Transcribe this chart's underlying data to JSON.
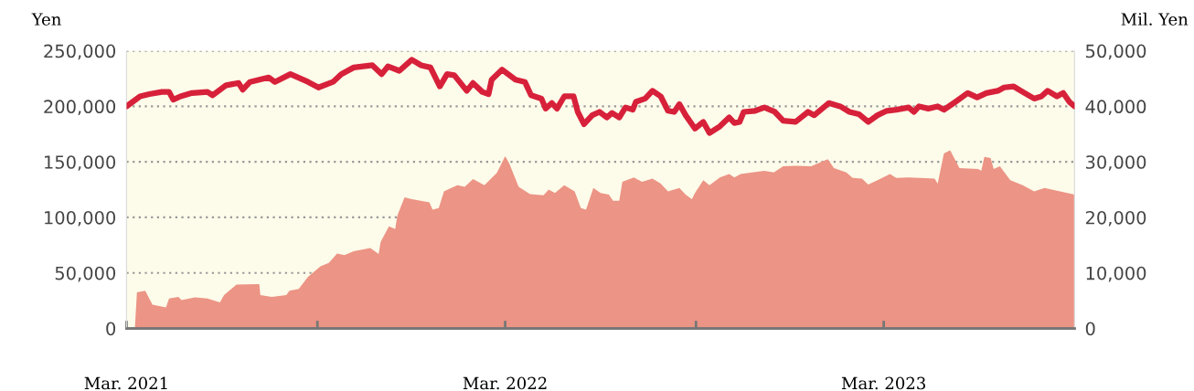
{
  "chart_data": {
    "type": "line",
    "ylabel": "Yen",
    "y2label": "Mil. Yen",
    "xlim": [
      "2021-03-01",
      "2023-09-01"
    ],
    "xticks": [
      {
        "value": "2021-03-01",
        "label": "Mar. 2021"
      },
      {
        "value": "2021-09-01",
        "label": null
      },
      {
        "value": "2022-03-01",
        "label": "Mar. 2022"
      },
      {
        "value": "2022-09-01",
        "label": null
      },
      {
        "value": "2023-03-01",
        "label": "Mar. 2023"
      }
    ],
    "ylim": [
      0,
      250000
    ],
    "yticks": [
      0,
      {
        "value": 50000,
        "label": "50,000"
      },
      {
        "value": 100000,
        "label": "100,000"
      },
      {
        "value": 150000,
        "label": "150,000"
      },
      {
        "value": 200000,
        "label": "200,000"
      },
      {
        "value": 250000,
        "label": "250,000"
      }
    ],
    "y2lim": [
      0,
      50000
    ],
    "y2ticks": [
      0,
      {
        "value": 10000,
        "label": "10,000"
      },
      {
        "value": 20000,
        "label": "20,000"
      },
      {
        "value": 30000,
        "label": "30,000"
      },
      {
        "value": 40000,
        "label": "40,000"
      },
      {
        "value": 50000,
        "label": "50,000"
      }
    ],
    "grid": "y",
    "marker": "none",
    "line_style": "solid",
    "series": [
      {
        "type": "area",
        "axis": "y2",
        "color": "#ec9485",
        "x": [
          "2021-03-01",
          "2021-03-09",
          "2021-03-11",
          "2021-03-19",
          "2021-03-26",
          "2021-04-08",
          "2021-04-11",
          "2021-04-20",
          "2021-04-23",
          "2021-05-06",
          "2021-05-18",
          "2021-05-30",
          "2021-06-03",
          "2021-06-10",
          "2021-06-15",
          "2021-07-07",
          "2021-07-08",
          "2021-07-19",
          "2021-08-02",
          "2021-08-05",
          "2021-08-14",
          "2021-08-23",
          "2021-09-04",
          "2021-09-12",
          "2021-09-20",
          "2021-09-27",
          "2021-10-06",
          "2021-10-22",
          "2021-10-30",
          "2021-11-01",
          "2021-11-09",
          "2021-11-15",
          "2021-11-17",
          "2021-11-24",
          "2021-12-01",
          "2021-12-18",
          "2021-12-21",
          "2021-12-27",
          "2022-01-01",
          "2022-01-08",
          "2022-01-14",
          "2022-01-21",
          "2022-01-29",
          "2022-02-09",
          "2022-02-21",
          "2022-03-01",
          "2022-03-05",
          "2022-03-14",
          "2022-03-25",
          "2022-04-07",
          "2022-04-12",
          "2022-04-18",
          "2022-04-27",
          "2022-05-07",
          "2022-05-13",
          "2022-05-18",
          "2022-05-25",
          "2022-06-01",
          "2022-06-09",
          "2022-06-13",
          "2022-06-19",
          "2022-06-22",
          "2022-07-03",
          "2022-07-11",
          "2022-07-21",
          "2022-07-29",
          "2022-08-05",
          "2022-08-16",
          "2022-08-22",
          "2022-08-28",
          "2022-08-31",
          "2022-09-08",
          "2022-09-14",
          "2022-09-24",
          "2022-10-03",
          "2022-10-08",
          "2022-10-14",
          "2022-10-25",
          "2022-11-06",
          "2022-11-15",
          "2022-11-24",
          "2022-12-06",
          "2022-12-21",
          "2023-01-06",
          "2023-01-12",
          "2023-01-24",
          "2023-01-30",
          "2023-02-08",
          "2023-02-14",
          "2023-02-23",
          "2023-03-07",
          "2023-03-13",
          "2023-03-25",
          "2023-04-19",
          "2023-04-22",
          "2023-04-28",
          "2023-05-04",
          "2023-05-13",
          "2023-05-31",
          "2023-06-03",
          "2023-06-06",
          "2023-06-12",
          "2023-06-15",
          "2023-06-21",
          "2023-07-01",
          "2023-07-13",
          "2023-07-24",
          "2023-08-03",
          "2023-08-18",
          "2023-09-01"
        ],
        "values": [
          0,
          0,
          6500,
          6800,
          4300,
          3800,
          5400,
          5700,
          5100,
          5600,
          5400,
          4700,
          6000,
          7100,
          7900,
          8000,
          6000,
          5700,
          6000,
          6800,
          7100,
          9300,
          11200,
          11800,
          13500,
          13200,
          13900,
          14500,
          13400,
          15600,
          18400,
          17900,
          20300,
          23600,
          23300,
          22700,
          21400,
          21700,
          24700,
          25300,
          25800,
          25500,
          26900,
          25800,
          28000,
          31000,
          29700,
          25500,
          24200,
          24000,
          25000,
          24400,
          25800,
          24700,
          21700,
          21400,
          25300,
          24400,
          24100,
          23000,
          23000,
          26400,
          27200,
          26400,
          27000,
          26100,
          24700,
          25300,
          24100,
          23300,
          24400,
          26700,
          25800,
          27200,
          27800,
          27200,
          27800,
          28100,
          28400,
          28100,
          29200,
          29300,
          29200,
          30500,
          28900,
          28100,
          27100,
          27000,
          25900,
          26700,
          27800,
          27100,
          27200,
          27000,
          26100,
          31500,
          32100,
          28900,
          28700,
          28400,
          30900,
          30700,
          28700,
          29200,
          26700,
          25800,
          24700,
          25300,
          24700,
          24100
        ]
      },
      {
        "color": "#d7213a",
        "x": [
          "2021-03-01",
          "2021-03-14",
          "2021-03-23",
          "2021-04-04",
          "2021-04-11",
          "2021-04-15",
          "2021-04-22",
          "2021-05-03",
          "2021-05-18",
          "2021-05-23",
          "2021-06-05",
          "2021-06-17",
          "2021-06-21",
          "2021-06-28",
          "2021-07-16",
          "2021-07-22",
          "2021-08-06",
          "2021-08-23",
          "2021-09-02",
          "2021-09-16",
          "2021-09-24",
          "2021-10-06",
          "2021-10-24",
          "2021-11-02",
          "2021-11-08",
          "2021-11-19",
          "2021-12-01",
          "2021-12-10",
          "2021-12-19",
          "2021-12-28",
          "2022-01-04",
          "2022-01-11",
          "2022-01-23",
          "2022-01-29",
          "2022-02-07",
          "2022-02-13",
          "2022-02-16",
          "2022-02-26",
          "2022-03-11",
          "2022-03-20",
          "2022-03-26",
          "2022-04-05",
          "2022-04-09",
          "2022-04-15",
          "2022-04-20",
          "2022-04-27",
          "2022-05-06",
          "2022-05-10",
          "2022-05-16",
          "2022-05-24",
          "2022-05-31",
          "2022-06-07",
          "2022-06-12",
          "2022-06-19",
          "2022-06-25",
          "2022-07-02",
          "2022-07-05",
          "2022-07-14",
          "2022-07-21",
          "2022-07-29",
          "2022-08-05",
          "2022-08-11",
          "2022-08-16",
          "2022-08-22",
          "2022-08-31",
          "2022-09-08",
          "2022-09-14",
          "2022-09-24",
          "2022-10-03",
          "2022-10-08",
          "2022-10-13",
          "2022-10-17",
          "2022-10-28",
          "2022-11-06",
          "2022-11-16",
          "2022-11-24",
          "2022-12-06",
          "2022-12-18",
          "2022-12-24",
          "2023-01-07",
          "2023-01-18",
          "2023-01-27",
          "2023-02-05",
          "2023-02-14",
          "2023-02-23",
          "2023-03-04",
          "2023-03-13",
          "2023-03-25",
          "2023-03-30",
          "2023-04-04",
          "2023-04-13",
          "2023-04-22",
          "2023-04-28",
          "2023-05-09",
          "2023-05-21",
          "2023-05-30",
          "2023-06-08",
          "2023-06-19",
          "2023-06-25",
          "2023-07-04",
          "2023-07-13",
          "2023-07-24",
          "2023-07-31",
          "2023-08-06",
          "2023-08-15",
          "2023-08-21",
          "2023-08-27",
          "2023-09-01"
        ],
        "values": [
          200000,
          209000,
          211000,
          213000,
          213000,
          206000,
          209000,
          212000,
          213000,
          210000,
          219000,
          221000,
          215000,
          222000,
          226000,
          222000,
          229000,
          222000,
          217000,
          222000,
          229000,
          235000,
          237000,
          229000,
          236000,
          232000,
          242000,
          237000,
          235000,
          218000,
          229000,
          228000,
          214000,
          221000,
          213000,
          211000,
          224000,
          233000,
          224000,
          222000,
          210000,
          207000,
          198000,
          203000,
          198000,
          209000,
          209000,
          195000,
          184000,
          192000,
          195000,
          190000,
          194000,
          190000,
          199000,
          197000,
          204000,
          207000,
          214000,
          209000,
          196000,
          195000,
          202000,
          192000,
          180000,
          186000,
          176000,
          182000,
          190000,
          185000,
          186000,
          195000,
          196000,
          199000,
          195000,
          187000,
          186000,
          195000,
          192000,
          203000,
          200000,
          195000,
          193000,
          186000,
          192000,
          196000,
          197000,
          199000,
          195000,
          200000,
          198000,
          200000,
          197000,
          204000,
          212000,
          208000,
          212000,
          214000,
          217000,
          218000,
          213000,
          207000,
          209000,
          214000,
          209000,
          212000,
          204000,
          200000
        ]
      }
    ]
  }
}
